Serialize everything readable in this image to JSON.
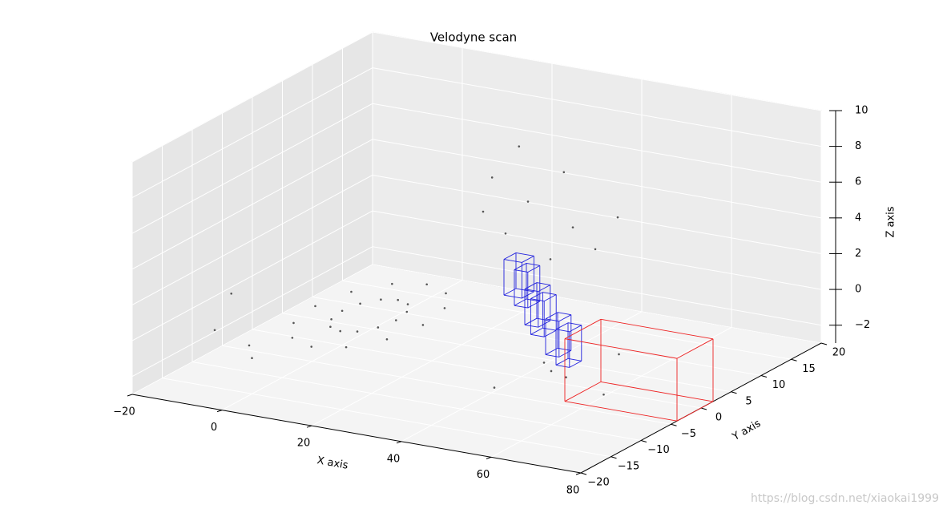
{
  "chart_data": {
    "type": "scatter3d",
    "title": "Velodyne scan",
    "x_label": "X axis",
    "y_label": "Y axis",
    "z_label": "Z axis",
    "watermark": "https://blog.csdn.net/xiaokai1999",
    "xlim": [
      -20,
      80
    ],
    "ylim": [
      -20,
      20
    ],
    "zlim": [
      -3,
      10
    ],
    "xticks": [
      {
        "value": -20,
        "label": "−20"
      },
      0,
      20,
      40,
      60,
      80
    ],
    "yticks": [
      {
        "value": -20,
        "label": "−20"
      },
      {
        "value": -15,
        "label": "−15"
      },
      {
        "value": -10,
        "label": "−10"
      },
      {
        "value": -5,
        "label": "−5"
      },
      0,
      5,
      10,
      15,
      20
    ],
    "zticks": [
      {
        "value": -2,
        "label": "−2"
      },
      0,
      2,
      4,
      6,
      8,
      10
    ],
    "grid": true,
    "point_color": "#555555",
    "points": {
      "x": [
        8,
        7.2,
        5,
        2,
        -1,
        -3.2,
        -4,
        -3.2,
        -1,
        2,
        5,
        7.2,
        14,
        12.4,
        8,
        2,
        -4,
        -8.4,
        -10,
        -8.4,
        -4,
        2,
        8,
        12.4,
        10,
        12,
        15,
        18,
        20,
        25,
        28,
        30,
        35,
        40,
        60,
        70,
        50,
        45,
        55,
        65,
        -15,
        -18,
        -10,
        0
      ],
      "y": [
        3,
        5.4,
        7.2,
        7.8,
        7.2,
        5.4,
        3,
        0.6,
        -1.2,
        -1.8,
        -1.2,
        0.6,
        3,
        7.8,
        11.3,
        12.6,
        11.3,
        7.8,
        3,
        -1.8,
        -5.3,
        -6.6,
        -5.3,
        -1.8,
        16,
        16,
        16,
        16,
        16,
        16,
        16,
        16,
        16,
        16,
        -10,
        -15,
        -12,
        0,
        5,
        -5,
        -10,
        -5,
        -8,
        -15
      ],
      "z": [
        -1.8,
        -1.8,
        -1.8,
        -1.8,
        -1.8,
        -1.8,
        -1.8,
        -1.8,
        -1.8,
        -1.8,
        -1.8,
        -1.8,
        -1.8,
        -1.8,
        -1.8,
        -1.8,
        -1.8,
        -1.8,
        -1.8,
        -1.8,
        -1.8,
        -1.8,
        -1.8,
        -1.8,
        2,
        4,
        1,
        6,
        3,
        0,
        5,
        2,
        1,
        3,
        0,
        1,
        -1,
        -2,
        -2,
        -2,
        -1,
        0,
        -2,
        -1
      ]
    },
    "boxes": [
      {
        "color": "#2222dd",
        "x": [
          20,
          24
        ],
        "y": [
          12,
          14
        ],
        "z": [
          -1.5,
          0.5
        ]
      },
      {
        "color": "#2222dd",
        "x": [
          25,
          28
        ],
        "y": [
          10,
          12
        ],
        "z": [
          -1.5,
          0.5
        ]
      },
      {
        "color": "#2222dd",
        "x": [
          30,
          33
        ],
        "y": [
          8,
          10
        ],
        "z": [
          -2,
          0
        ]
      },
      {
        "color": "#2222dd",
        "x": [
          34,
          37
        ],
        "y": [
          6,
          8
        ],
        "z": [
          -2,
          0
        ]
      },
      {
        "color": "#2222dd",
        "x": [
          40,
          43
        ],
        "y": [
          4,
          6
        ],
        "z": [
          -2.5,
          -0.5
        ]
      },
      {
        "color": "#2222dd",
        "x": [
          45,
          48
        ],
        "y": [
          2,
          4
        ],
        "z": [
          -2.5,
          -0.5
        ]
      },
      {
        "color": "#ee2222",
        "x": [
          55,
          80
        ],
        "y": [
          -4,
          2
        ],
        "z": [
          -3,
          0.5
        ]
      }
    ]
  }
}
